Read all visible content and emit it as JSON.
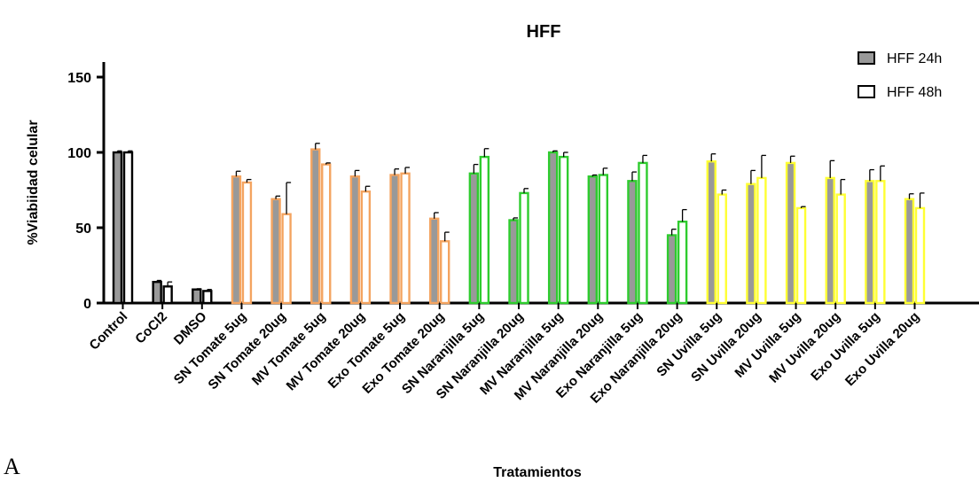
{
  "panel_label": "A",
  "chart_data": {
    "type": "bar",
    "title": "HFF",
    "xlabel": "Tratamientos",
    "ylabel": "%Viabiidad celular",
    "ylim": [
      0,
      160
    ],
    "yticks": [
      0,
      50,
      100,
      150
    ],
    "grid": false,
    "legend_position": "top-right",
    "categories": [
      "Control",
      "CoCl2",
      "DMSO",
      "SN Tomate 5ug",
      "SN Tomate 20ug",
      "MV Tomate 5ug",
      "MV Tomate 20ug",
      "Exo Tomate 5ug",
      "Exo Tomate 20ug",
      "SN Naranjilla 5ug",
      "SN Naranjilla 20ug",
      "MV Naranjilla 5ug",
      "MV Naranjilla 20ug",
      "Exo Naranjilla 5ug",
      "Exo Naranjilla 20ug",
      "SN Uvilla 5ug",
      "SN Uvilla 20ug",
      "MV Uvilla 5ug",
      "MV Uvilla 20ug",
      "Exo Uvilla 5ug",
      "Exo Uvilla 20ug"
    ],
    "series": [
      {
        "name": "HFF 24h",
        "fill": "#999999",
        "values": [
          100,
          14,
          9,
          84,
          69,
          102,
          84,
          85,
          56,
          86,
          55,
          100,
          84,
          81,
          45,
          94,
          79,
          93,
          83,
          81,
          69
        ],
        "errors": [
          1,
          1,
          0.5,
          3.5,
          2,
          4,
          4,
          4,
          4,
          6,
          1.5,
          1,
          1,
          6,
          4,
          5,
          9,
          4.5,
          11.5,
          7.5,
          3.5
        ]
      },
      {
        "name": "HFF 48h",
        "fill": "#ffffff",
        "values": [
          100,
          11,
          8,
          80,
          59,
          92,
          74,
          86,
          41,
          97,
          73,
          97,
          85,
          93,
          54,
          72,
          83,
          63,
          72,
          81,
          63
        ],
        "errors": [
          1,
          3,
          1,
          2,
          21,
          1,
          3.5,
          4,
          6,
          5.5,
          3,
          3,
          4.5,
          5,
          8,
          3,
          15,
          1,
          10,
          10,
          10
        ]
      }
    ],
    "edge_colors": [
      "#000000",
      "#000000",
      "#000000",
      "#f4a460",
      "#f4a460",
      "#f4a460",
      "#f4a460",
      "#f4a460",
      "#f4a460",
      "#2ecc2e",
      "#2ecc2e",
      "#2ecc2e",
      "#2ecc2e",
      "#2ecc2e",
      "#2ecc2e",
      "#ffff33",
      "#ffff33",
      "#ffff33",
      "#ffff33",
      "#ffff33",
      "#ffff33"
    ],
    "axis_color": "#000000"
  }
}
